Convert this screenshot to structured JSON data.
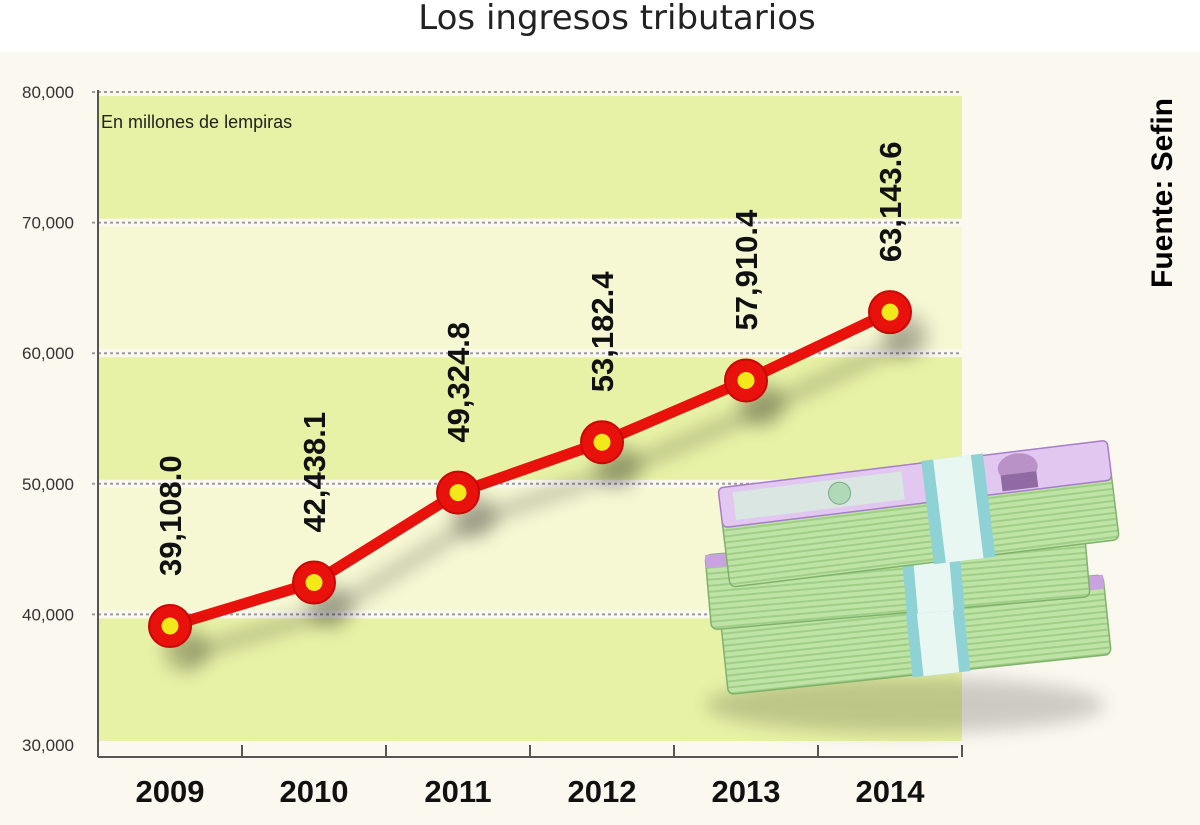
{
  "chart_data": {
    "type": "line",
    "title": "Los ingresos tributarios",
    "unit_note": "En millones de lempiras",
    "source": "Fuente: Sefin",
    "categories": [
      "2009",
      "2010",
      "2011",
      "2012",
      "2013",
      "2014"
    ],
    "values": [
      39108.0,
      42438.1,
      49324.8,
      53182.4,
      57910.4,
      63143.6
    ],
    "value_labels": [
      "39,108.0",
      "42,438.1",
      "49,324.8",
      "53,182.4",
      "57,910.4",
      "63,143.6"
    ],
    "y_ticks": [
      30000,
      40000,
      50000,
      60000,
      70000,
      80000
    ],
    "y_tick_labels": [
      "30,000",
      "40,000",
      "50,000",
      "60,000",
      "70,000",
      "80,000"
    ],
    "ylim": [
      30000,
      80000
    ],
    "grid": true,
    "colors": {
      "line": "#e8110c",
      "marker_fill": "#f2e81a",
      "band_light": "#f6f8d4",
      "band_dark": "#e8f2a6",
      "page_bg": "#fbf8f0"
    }
  },
  "image": {
    "icon": "money-stacks-icon"
  }
}
